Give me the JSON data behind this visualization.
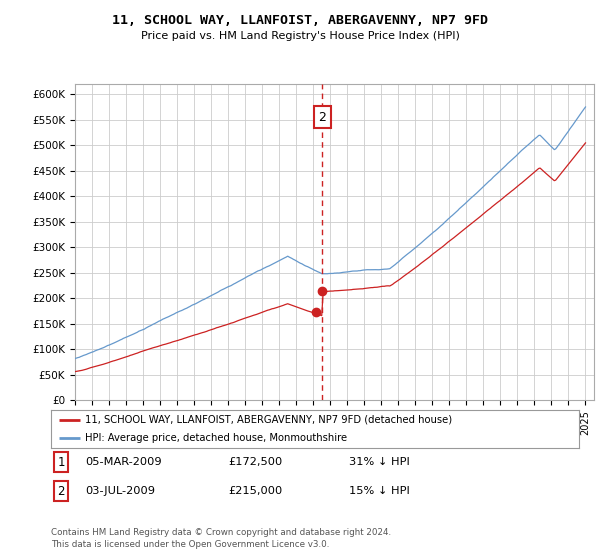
{
  "title": "11, SCHOOL WAY, LLANFOIST, ABERGAVENNY, NP7 9FD",
  "subtitle": "Price paid vs. HM Land Registry's House Price Index (HPI)",
  "ylim": [
    0,
    620000
  ],
  "yticks": [
    0,
    50000,
    100000,
    150000,
    200000,
    250000,
    300000,
    350000,
    400000,
    450000,
    500000,
    550000,
    600000
  ],
  "ytick_labels": [
    "£0",
    "£50K",
    "£100K",
    "£150K",
    "£200K",
    "£250K",
    "£300K",
    "£350K",
    "£400K",
    "£450K",
    "£500K",
    "£550K",
    "£600K"
  ],
  "xlim_start": 1995.0,
  "xlim_end": 2025.5,
  "hpi_color": "#6699cc",
  "price_color": "#cc2222",
  "dashed_line_color": "#cc2222",
  "sale1_date": 2009.17,
  "sale2_date": 2009.54,
  "sale1_price": 172500,
  "sale2_price": 215000,
  "legend_line1": "11, SCHOOL WAY, LLANFOIST, ABERGAVENNY, NP7 9FD (detached house)",
  "legend_line2": "HPI: Average price, detached house, Monmouthshire",
  "table_row1": [
    "1",
    "05-MAR-2009",
    "£172,500",
    "31% ↓ HPI"
  ],
  "table_row2": [
    "2",
    "03-JUL-2009",
    "£215,000",
    "15% ↓ HPI"
  ],
  "footnote1": "Contains HM Land Registry data © Crown copyright and database right 2024.",
  "footnote2": "This data is licensed under the Open Government Licence v3.0.",
  "background_color": "#ffffff",
  "grid_color": "#cccccc"
}
